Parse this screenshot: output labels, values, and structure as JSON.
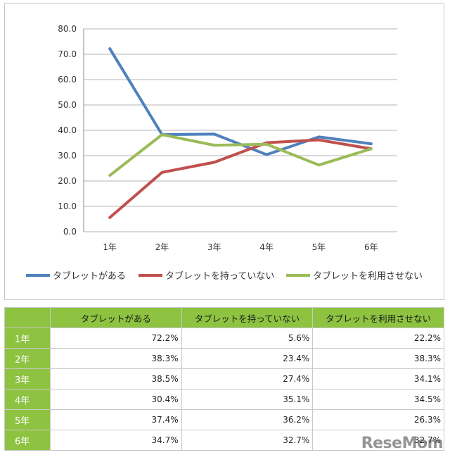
{
  "chart_data": {
    "type": "line",
    "categories": [
      "1年",
      "2年",
      "3年",
      "4年",
      "5年",
      "6年"
    ],
    "ylim": [
      0,
      80
    ],
    "yticks": [
      "0.0",
      "10.0",
      "20.0",
      "30.0",
      "40.0",
      "50.0",
      "60.0",
      "70.0",
      "80.0"
    ],
    "grid": true,
    "legend": "bottom",
    "series": [
      {
        "name": "タブレットがある",
        "color": "#4f81bd",
        "values": [
          72.2,
          38.3,
          38.5,
          30.4,
          37.4,
          34.7
        ]
      },
      {
        "name": "タブレットを持っていない",
        "color": "#c0504d",
        "values": [
          5.6,
          23.4,
          27.4,
          35.1,
          36.2,
          32.7
        ]
      },
      {
        "name": "タブレットを利用させない",
        "color": "#9bbb59",
        "values": [
          22.2,
          38.3,
          34.1,
          34.5,
          26.3,
          32.7
        ]
      }
    ]
  },
  "table": {
    "headers": [
      "タブレットがある",
      "タブレットを持っていない",
      "タブレットを利用させない"
    ],
    "rows": [
      {
        "label": "1年",
        "cells": [
          "72.2%",
          "5.6%",
          "22.2%"
        ]
      },
      {
        "label": "2年",
        "cells": [
          "38.3%",
          "23.4%",
          "38.3%"
        ]
      },
      {
        "label": "3年",
        "cells": [
          "38.5%",
          "27.4%",
          "34.1%"
        ]
      },
      {
        "label": "4年",
        "cells": [
          "30.4%",
          "35.1%",
          "34.5%"
        ]
      },
      {
        "label": "5年",
        "cells": [
          "37.4%",
          "36.2%",
          "26.3%"
        ]
      },
      {
        "label": "6年",
        "cells": [
          "34.7%",
          "32.7%",
          "32.7%"
        ]
      }
    ]
  },
  "watermark": "ReseMom"
}
